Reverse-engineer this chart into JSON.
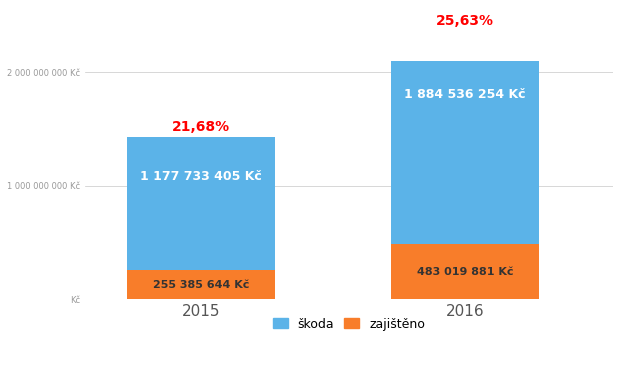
{
  "years": [
    "2015",
    "2016"
  ],
  "skoda": [
    1177733405,
    1884536254
  ],
  "zajisteno": [
    255385644,
    483019881
  ],
  "percentages": [
    "21,68%",
    "25,63%"
  ],
  "skoda_labels": [
    "1 177 733 405 Kč",
    "1 884 536 254 Kč"
  ],
  "zajisteno_labels": [
    "255 385 644 Kč",
    "483 019 881 Kč"
  ],
  "color_skoda": "#5BB3E8",
  "color_zajisteno": "#F87D2A",
  "color_percent": "#FF0000",
  "color_label_white": "#FFFFFF",
  "color_label_dark": "#333333",
  "ylim_max": 2100000000,
  "ytick_vals": [
    0,
    1000000000,
    2000000000
  ],
  "ytick_labels": [
    "Kč",
    "1 000 000 000 Kč",
    "2 000 000 000 Kč"
  ],
  "legend_skoda": "škoda",
  "legend_zajisteno": "zajištěno",
  "bar_width": 0.28,
  "bar_positions": [
    0.22,
    0.72
  ],
  "xlim": [
    0.0,
    1.0
  ],
  "background_color": "#FFFFFF",
  "grid_color": "#C8C8C8",
  "label_fontsize_skoda": 9,
  "label_fontsize_zajisteno": 8,
  "pct_fontsize": 10,
  "xtick_fontsize": 11,
  "ytick_fontsize": 6
}
